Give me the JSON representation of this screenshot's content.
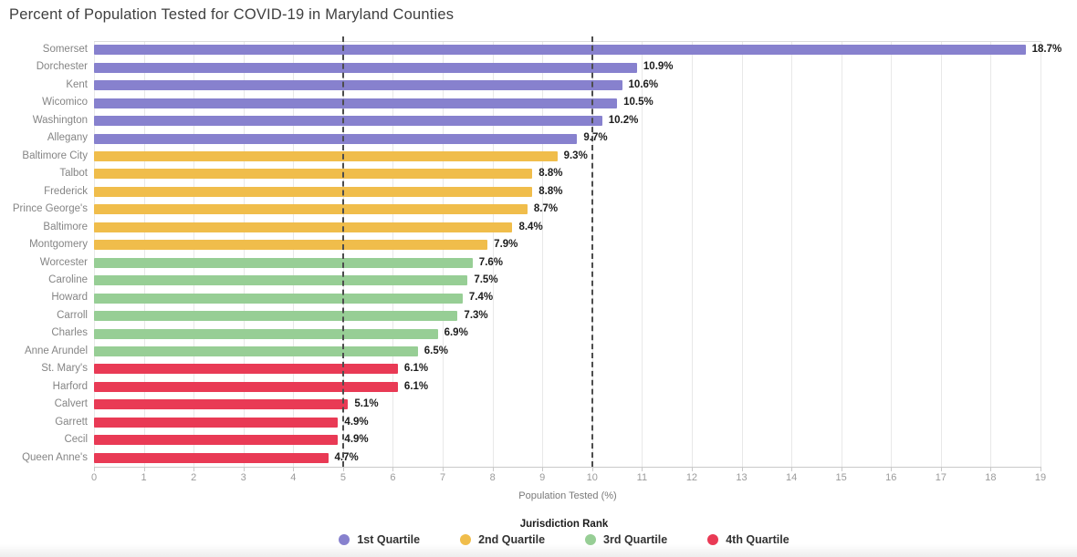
{
  "title": "Percent of Population Tested for COVID-19 in Maryland Counties",
  "chart_data": {
    "type": "bar",
    "orientation": "horizontal",
    "title": "Percent of Population Tested for COVID-19 in Maryland Counties",
    "xlabel": "Population Tested (%)",
    "xlim": [
      0,
      19
    ],
    "x_ticks": [
      0,
      1,
      2,
      3,
      4,
      5,
      6,
      7,
      8,
      9,
      10,
      11,
      12,
      13,
      14,
      15,
      16,
      17,
      18,
      19
    ],
    "grid": "vertical",
    "reference_lines": [
      5,
      10
    ],
    "legend_title": "Jurisdiction Rank",
    "legend_position": "bottom",
    "legend": [
      {
        "label": "1st Quartile",
        "color": "#8781CE"
      },
      {
        "label": "2nd Quartile",
        "color": "#F0BD4B"
      },
      {
        "label": "3rd Quartile",
        "color": "#97CE95"
      },
      {
        "label": "4th Quartile",
        "color": "#E93A55"
      }
    ],
    "bars": [
      {
        "county": "Somerset",
        "value": 18.7,
        "label": "18.7%",
        "quartile": 1
      },
      {
        "county": "Dorchester",
        "value": 10.9,
        "label": "10.9%",
        "quartile": 1
      },
      {
        "county": "Kent",
        "value": 10.6,
        "label": "10.6%",
        "quartile": 1
      },
      {
        "county": "Wicomico",
        "value": 10.5,
        "label": "10.5%",
        "quartile": 1
      },
      {
        "county": "Washington",
        "value": 10.2,
        "label": "10.2%",
        "quartile": 1
      },
      {
        "county": "Allegany",
        "value": 9.7,
        "label": "9.7%",
        "quartile": 1
      },
      {
        "county": "Baltimore City",
        "value": 9.3,
        "label": "9.3%",
        "quartile": 2
      },
      {
        "county": "Talbot",
        "value": 8.8,
        "label": "8.8%",
        "quartile": 2
      },
      {
        "county": "Frederick",
        "value": 8.8,
        "label": "8.8%",
        "quartile": 2
      },
      {
        "county": "Prince George's",
        "value": 8.7,
        "label": "8.7%",
        "quartile": 2
      },
      {
        "county": "Baltimore",
        "value": 8.4,
        "label": "8.4%",
        "quartile": 2
      },
      {
        "county": "Montgomery",
        "value": 7.9,
        "label": "7.9%",
        "quartile": 2
      },
      {
        "county": "Worcester",
        "value": 7.6,
        "label": "7.6%",
        "quartile": 3
      },
      {
        "county": "Caroline",
        "value": 7.5,
        "label": "7.5%",
        "quartile": 3
      },
      {
        "county": "Howard",
        "value": 7.4,
        "label": "7.4%",
        "quartile": 3
      },
      {
        "county": "Carroll",
        "value": 7.3,
        "label": "7.3%",
        "quartile": 3
      },
      {
        "county": "Charles",
        "value": 6.9,
        "label": "6.9%",
        "quartile": 3
      },
      {
        "county": "Anne Arundel",
        "value": 6.5,
        "label": "6.5%",
        "quartile": 3
      },
      {
        "county": "St. Mary's",
        "value": 6.1,
        "label": "6.1%",
        "quartile": 4
      },
      {
        "county": "Harford",
        "value": 6.1,
        "label": "6.1%",
        "quartile": 4
      },
      {
        "county": "Calvert",
        "value": 5.1,
        "label": "5.1%",
        "quartile": 4
      },
      {
        "county": "Garrett",
        "value": 4.9,
        "label": "4.9%",
        "quartile": 4
      },
      {
        "county": "Cecil",
        "value": 4.9,
        "label": "4.9%",
        "quartile": 4
      },
      {
        "county": "Queen Anne's",
        "value": 4.7,
        "label": "4.7%",
        "quartile": 4
      }
    ]
  }
}
